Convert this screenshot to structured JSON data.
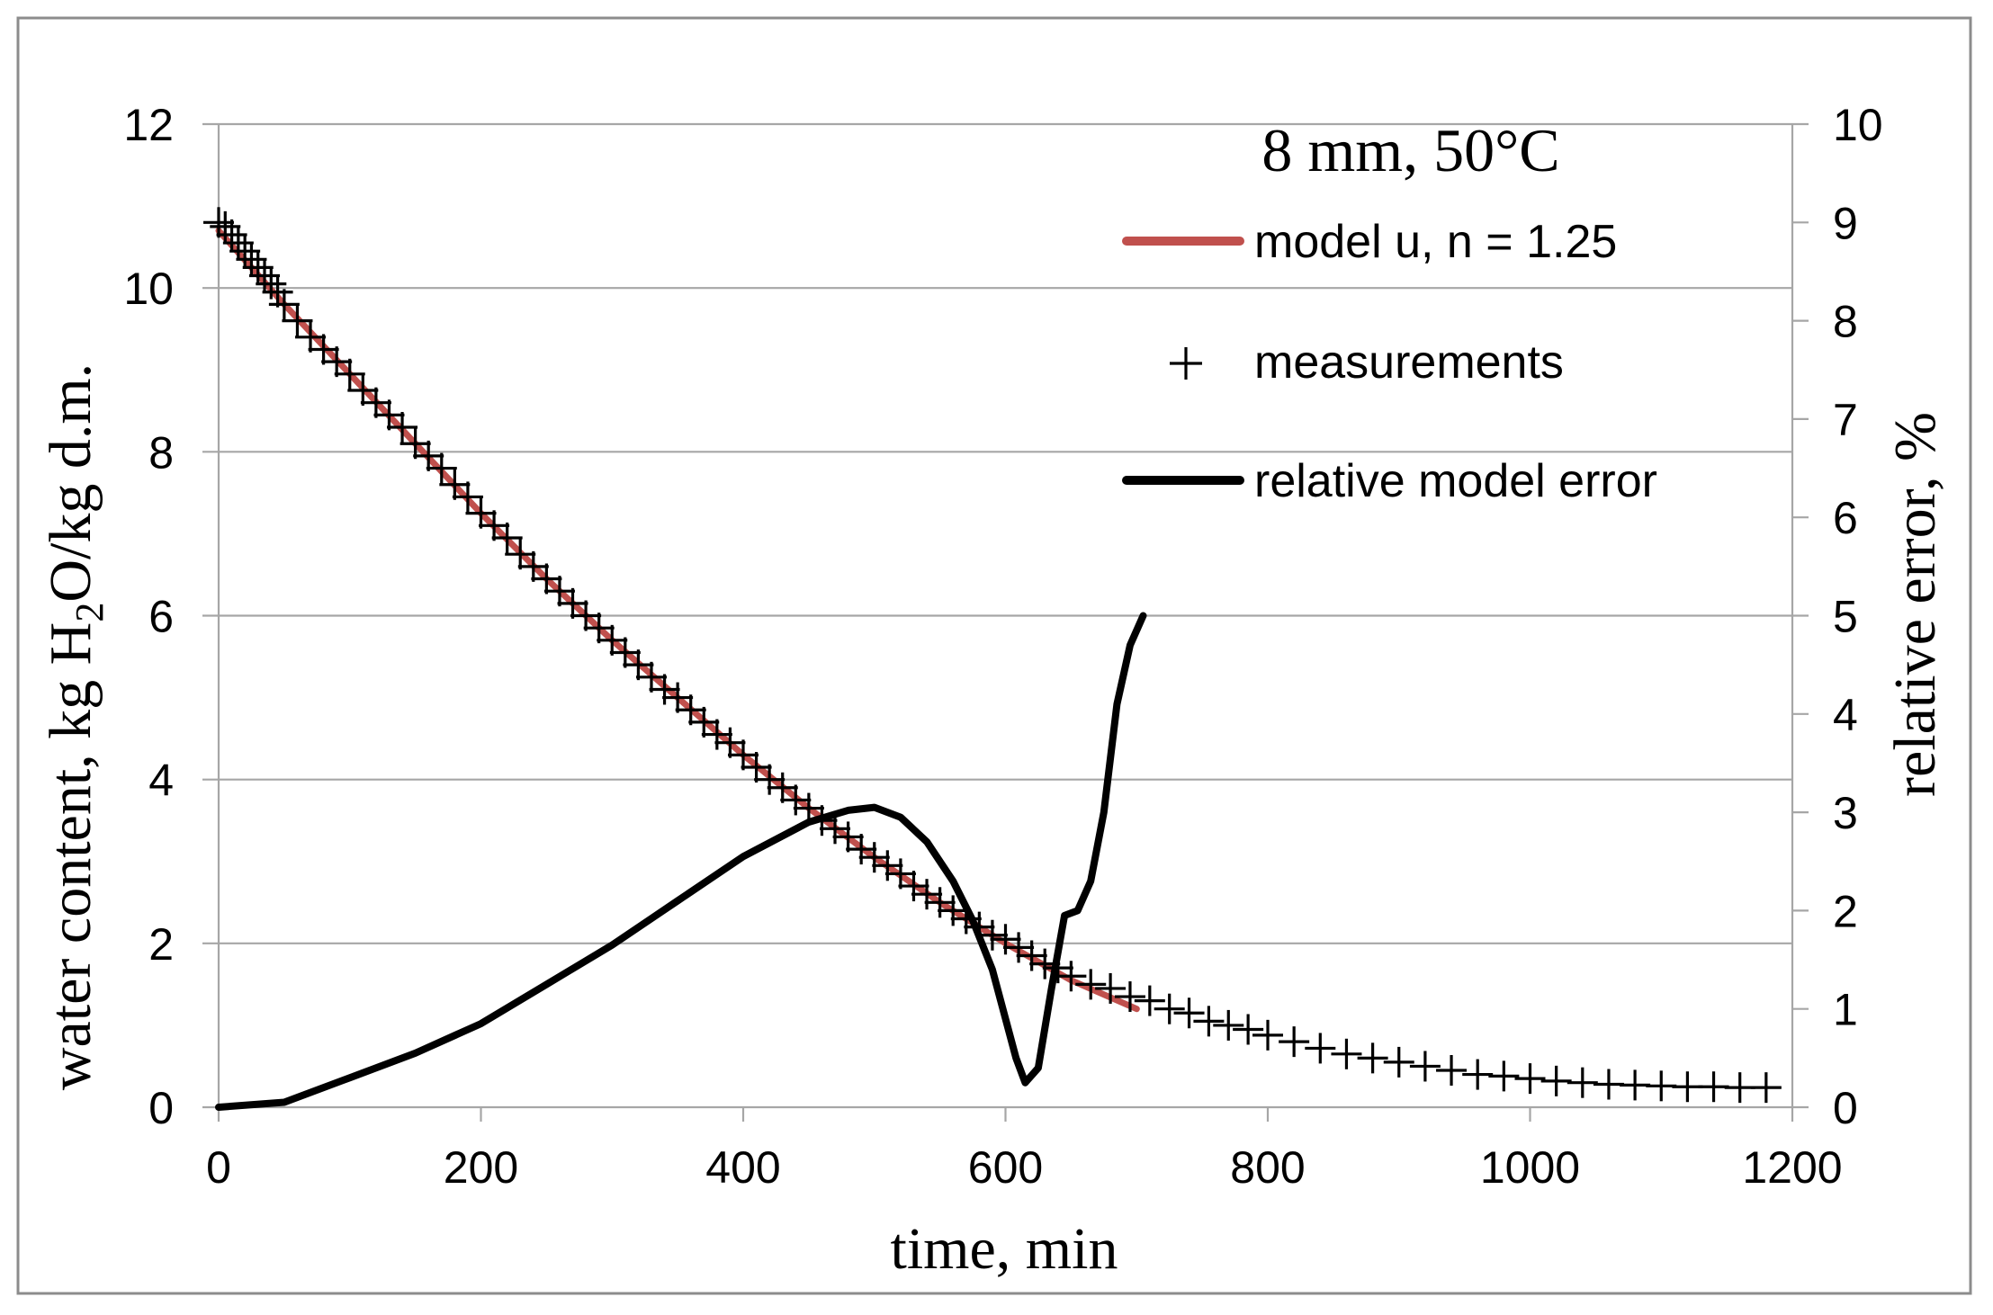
{
  "chart_data": {
    "type": "line",
    "title": "8 mm, 50°C",
    "xlabel": "time, min",
    "ylabel": {
      "prefix": "water content, kg H",
      "sub": "2",
      "suffix": "O/kg d.m."
    },
    "y2label": "relative error, %",
    "xlim": [
      0,
      1200
    ],
    "ylim": [
      0,
      12
    ],
    "y2lim": [
      0,
      10
    ],
    "x_ticks": [
      "0",
      "200",
      "400",
      "600",
      "800",
      "1000",
      "1200"
    ],
    "y_ticks": [
      "0",
      "2",
      "4",
      "6",
      "8",
      "10",
      "12"
    ],
    "y2_ticks": [
      "0",
      "1",
      "2",
      "3",
      "4",
      "5",
      "6",
      "7",
      "8",
      "9",
      "10"
    ],
    "x_tick_values": [
      0,
      200,
      400,
      600,
      800,
      1000,
      1200
    ],
    "y_tick_values": [
      0,
      2,
      4,
      6,
      8,
      10,
      12
    ],
    "y2_tick_values": [
      0,
      1,
      2,
      3,
      4,
      5,
      6,
      7,
      8,
      9,
      10
    ],
    "grid": true,
    "legend": {
      "position": "top-right",
      "entries": [
        {
          "label": "model u, n = 1.25",
          "style": "line",
          "color": "#c0504d"
        },
        {
          "label": "measurements",
          "style": "plus",
          "color": "#000000"
        },
        {
          "label": "relative model error",
          "style": "line",
          "color": "#000000"
        }
      ]
    },
    "series": [
      {
        "name": "model u, n = 1.25",
        "axis": "left",
        "color": "#c0504d",
        "x": [
          0,
          50,
          100,
          150,
          200,
          250,
          300,
          350,
          400,
          450,
          500,
          550,
          600,
          650,
          700
        ],
        "y": [
          10.7,
          9.8,
          8.95,
          8.1,
          7.25,
          6.45,
          5.7,
          5.0,
          4.3,
          3.65,
          3.05,
          2.5,
          2.0,
          1.55,
          1.2
        ]
      },
      {
        "name": "measurements",
        "axis": "left",
        "color": "#000000",
        "points": [
          [
            0,
            10.8
          ],
          [
            5,
            10.75
          ],
          [
            10,
            10.65
          ],
          [
            15,
            10.55
          ],
          [
            20,
            10.45
          ],
          [
            25,
            10.35
          ],
          [
            30,
            10.25
          ],
          [
            35,
            10.15
          ],
          [
            40,
            10.05
          ],
          [
            45,
            9.95
          ],
          [
            50,
            9.8
          ],
          [
            60,
            9.6
          ],
          [
            70,
            9.4
          ],
          [
            80,
            9.25
          ],
          [
            90,
            9.1
          ],
          [
            100,
            8.95
          ],
          [
            110,
            8.75
          ],
          [
            120,
            8.6
          ],
          [
            130,
            8.45
          ],
          [
            140,
            8.3
          ],
          [
            150,
            8.1
          ],
          [
            160,
            7.95
          ],
          [
            170,
            7.8
          ],
          [
            180,
            7.6
          ],
          [
            190,
            7.45
          ],
          [
            200,
            7.25
          ],
          [
            210,
            7.1
          ],
          [
            220,
            6.95
          ],
          [
            230,
            6.75
          ],
          [
            240,
            6.6
          ],
          [
            250,
            6.45
          ],
          [
            260,
            6.3
          ],
          [
            270,
            6.15
          ],
          [
            280,
            6.0
          ],
          [
            290,
            5.85
          ],
          [
            300,
            5.7
          ],
          [
            310,
            5.55
          ],
          [
            320,
            5.4
          ],
          [
            330,
            5.25
          ],
          [
            340,
            5.1
          ],
          [
            350,
            5.0
          ],
          [
            360,
            4.85
          ],
          [
            370,
            4.7
          ],
          [
            380,
            4.55
          ],
          [
            390,
            4.45
          ],
          [
            400,
            4.3
          ],
          [
            410,
            4.15
          ],
          [
            420,
            4.0
          ],
          [
            430,
            3.9
          ],
          [
            440,
            3.75
          ],
          [
            450,
            3.65
          ],
          [
            460,
            3.5
          ],
          [
            470,
            3.4
          ],
          [
            480,
            3.3
          ],
          [
            490,
            3.15
          ],
          [
            500,
            3.05
          ],
          [
            510,
            2.95
          ],
          [
            520,
            2.85
          ],
          [
            530,
            2.7
          ],
          [
            540,
            2.6
          ],
          [
            550,
            2.5
          ],
          [
            560,
            2.4
          ],
          [
            570,
            2.3
          ],
          [
            580,
            2.2
          ],
          [
            590,
            2.1
          ],
          [
            600,
            2.05
          ],
          [
            610,
            1.95
          ],
          [
            620,
            1.85
          ],
          [
            630,
            1.75
          ],
          [
            640,
            1.7
          ],
          [
            650,
            1.6
          ],
          [
            665,
            1.5
          ],
          [
            680,
            1.45
          ],
          [
            695,
            1.35
          ],
          [
            710,
            1.3
          ],
          [
            725,
            1.2
          ],
          [
            740,
            1.15
          ],
          [
            755,
            1.05
          ],
          [
            770,
            1.0
          ],
          [
            785,
            0.95
          ],
          [
            800,
            0.88
          ],
          [
            820,
            0.8
          ],
          [
            840,
            0.72
          ],
          [
            860,
            0.65
          ],
          [
            880,
            0.6
          ],
          [
            900,
            0.55
          ],
          [
            920,
            0.5
          ],
          [
            940,
            0.45
          ],
          [
            960,
            0.4
          ],
          [
            980,
            0.38
          ],
          [
            1000,
            0.35
          ],
          [
            1020,
            0.32
          ],
          [
            1040,
            0.3
          ],
          [
            1060,
            0.28
          ],
          [
            1080,
            0.27
          ],
          [
            1100,
            0.26
          ],
          [
            1120,
            0.25
          ],
          [
            1140,
            0.25
          ],
          [
            1160,
            0.24
          ],
          [
            1180,
            0.24
          ]
        ]
      },
      {
        "name": "relative model error",
        "axis": "right",
        "color": "#000000",
        "x": [
          0,
          50,
          100,
          150,
          200,
          250,
          300,
          350,
          400,
          450,
          480,
          500,
          520,
          540,
          560,
          575,
          590,
          600,
          608,
          615,
          625,
          635,
          645,
          655,
          665,
          675,
          685,
          695,
          705
        ],
        "y": [
          0,
          0.05,
          0.3,
          0.55,
          0.85,
          1.25,
          1.65,
          2.1,
          2.55,
          2.9,
          3.02,
          3.05,
          2.95,
          2.7,
          2.3,
          1.9,
          1.4,
          0.9,
          0.5,
          0.25,
          0.4,
          1.2,
          1.95,
          2.0,
          2.3,
          3.0,
          4.1,
          4.7,
          5.0
        ]
      }
    ]
  }
}
